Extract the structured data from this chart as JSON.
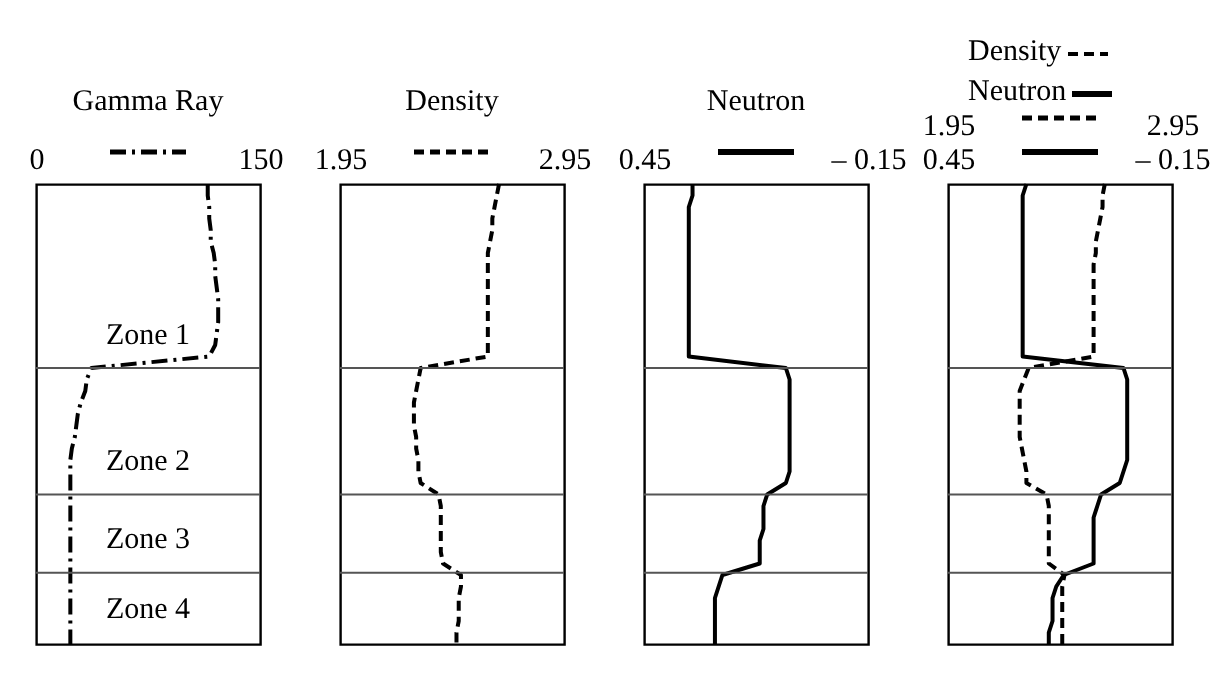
{
  "chart_data": [
    {
      "type": "line",
      "orientation": "horizontal",
      "title": "Gamma Ray",
      "tick_labels": "x",
      "xlim": [
        0,
        150
      ],
      "xticks": [
        0,
        150
      ],
      "categories": [
        null,
        null,
        null,
        null,
        null,
        null,
        null,
        null,
        null,
        null,
        null,
        null,
        null,
        null,
        null,
        null,
        null,
        null,
        null,
        null,
        null,
        null,
        null,
        null,
        null,
        null,
        null,
        null,
        null,
        null,
        null,
        null,
        null,
        null,
        null,
        null,
        null,
        null,
        null,
        null,
        null
      ],
      "series": [
        {
          "color": "#000000",
          "line_style": "dotted",
          "values": [
            115,
            115,
            116,
            116,
            117,
            117,
            119,
            120,
            120,
            121,
            122,
            122,
            122,
            121,
            120,
            116,
            37,
            34,
            33,
            30,
            28,
            27,
            26,
            24,
            23,
            23,
            23,
            23,
            23,
            23,
            23,
            23,
            23,
            23,
            23,
            23,
            23,
            23,
            23,
            23,
            23
          ]
        }
      ],
      "grid": "y",
      "annotations": [
        "Zone 1",
        "Zone 2",
        "Zone 3",
        "Zone 4"
      ]
    },
    {
      "type": "line",
      "orientation": "horizontal",
      "title": "Density",
      "tick_labels": "x",
      "xlim": [
        1.95,
        2.95
      ],
      "xticks": [
        1.95,
        2.95
      ],
      "categories": [
        null,
        null,
        null,
        null,
        null,
        null,
        null,
        null,
        null,
        null,
        null,
        null,
        null,
        null,
        null,
        null,
        null,
        null,
        null,
        null,
        null,
        null,
        null,
        null,
        null,
        null,
        null,
        null,
        null,
        null,
        null,
        null,
        null,
        null,
        null,
        null,
        null,
        null,
        null,
        null,
        null
      ],
      "series": [
        {
          "color": "#000000",
          "line_style": "dashed",
          "values": [
            2.66,
            2.65,
            2.64,
            2.63,
            2.63,
            2.62,
            2.61,
            2.61,
            2.61,
            2.61,
            2.61,
            2.61,
            2.61,
            2.61,
            2.61,
            2.61,
            2.31,
            2.3,
            2.29,
            2.28,
            2.28,
            2.28,
            2.29,
            2.29,
            2.3,
            2.3,
            2.31,
            2.39,
            2.4,
            2.4,
            2.4,
            2.4,
            2.4,
            2.41,
            2.49,
            2.49,
            2.48,
            2.48,
            2.48,
            2.47,
            2.47
          ]
        }
      ],
      "grid": "y"
    },
    {
      "type": "line",
      "orientation": "horizontal",
      "title": "Neutron",
      "tick_labels": "x",
      "xlim": [
        0.45,
        -0.15
      ],
      "xticks": [
        0.45,
        {
          "value": -0.15,
          "label": "– 0.15"
        }
      ],
      "categories": [
        null,
        null,
        null,
        null,
        null,
        null,
        null,
        null,
        null,
        null,
        null,
        null,
        null,
        null,
        null,
        null,
        null,
        null,
        null,
        null,
        null,
        null,
        null,
        null,
        null,
        null,
        null,
        null,
        null,
        null,
        null,
        null,
        null,
        null,
        null,
        null,
        null,
        null,
        null,
        null,
        null
      ],
      "series": [
        {
          "color": "#000000",
          "line_style": "solid",
          "values": [
            0.32,
            0.32,
            0.33,
            0.33,
            0.33,
            0.33,
            0.33,
            0.33,
            0.33,
            0.33,
            0.33,
            0.33,
            0.33,
            0.33,
            0.33,
            0.33,
            0.07,
            0.06,
            0.06,
            0.06,
            0.06,
            0.06,
            0.06,
            0.06,
            0.06,
            0.06,
            0.07,
            0.12,
            0.13,
            0.13,
            0.13,
            0.14,
            0.14,
            0.14,
            0.24,
            0.25,
            0.26,
            0.26,
            0.26,
            0.26,
            0.26
          ]
        }
      ],
      "grid": "y"
    },
    {
      "type": "line",
      "orientation": "horizontal",
      "legend": "top",
      "tick_labels": "x",
      "xlim": [
        0.45,
        -0.15
      ],
      "xticks": [
        0.45,
        {
          "value": -0.15,
          "label": "– 0.15"
        }
      ],
      "x2lim": [
        1.95,
        2.95
      ],
      "x2ticks": [
        1.95,
        2.95
      ],
      "categories": [
        null,
        null,
        null,
        null,
        null,
        null,
        null,
        null,
        null,
        null,
        null,
        null,
        null,
        null,
        null,
        null,
        null,
        null,
        null,
        null,
        null,
        null,
        null,
        null,
        null,
        null,
        null,
        null,
        null,
        null,
        null,
        null,
        null,
        null,
        null,
        null,
        null,
        null,
        null,
        null,
        null
      ],
      "series": [
        {
          "name": "Density",
          "axis": "x2",
          "color": "#000000",
          "line_style": "dashed",
          "values": [
            2.65,
            2.64,
            2.64,
            2.63,
            2.62,
            2.61,
            2.61,
            2.6,
            2.6,
            2.6,
            2.6,
            2.6,
            2.6,
            2.6,
            2.6,
            2.6,
            2.31,
            2.29,
            2.27,
            2.27,
            2.27,
            2.27,
            2.27,
            2.28,
            2.29,
            2.3,
            2.3,
            2.39,
            2.4,
            2.4,
            2.4,
            2.4,
            2.4,
            2.4,
            2.47,
            2.46,
            2.46,
            2.46,
            2.46,
            2.46,
            2.46
          ]
        },
        {
          "name": "Neutron",
          "color": "#000000",
          "line_style": "solid",
          "values": [
            0.24,
            0.25,
            0.25,
            0.25,
            0.25,
            0.25,
            0.25,
            0.25,
            0.25,
            0.25,
            0.25,
            0.25,
            0.25,
            0.25,
            0.25,
            0.25,
            -0.02,
            -0.03,
            -0.03,
            -0.03,
            -0.03,
            -0.03,
            -0.03,
            -0.03,
            -0.03,
            -0.02,
            -0.01,
            0.04,
            0.05,
            0.06,
            0.06,
            0.06,
            0.06,
            0.06,
            0.14,
            0.16,
            0.17,
            0.17,
            0.17,
            0.18,
            0.18
          ]
        }
      ],
      "grid": "y"
    }
  ]
}
